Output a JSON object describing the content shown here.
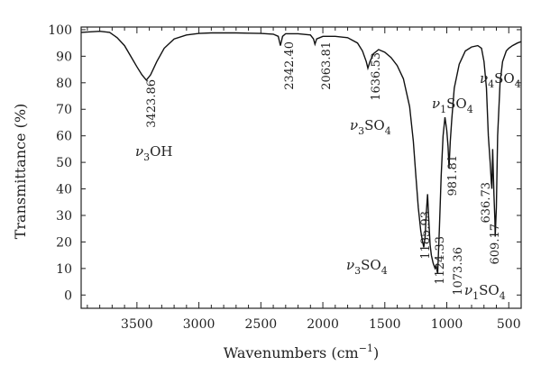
{
  "chart_data": {
    "type": "line",
    "xlabel": "Wavenumbers (cm",
    "xlabel_sup": "−1",
    "xlabel_close": ")",
    "ylabel": "Transmittance (%)",
    "xlim": [
      3950,
      400
    ],
    "ylim": [
      -5,
      101
    ],
    "x_reversed": true,
    "x_ticks": [
      3500,
      3000,
      2500,
      2000,
      1500,
      1000,
      500
    ],
    "x_tick_labels": [
      "3500",
      "3000",
      "2500",
      "2000",
      "1500",
      "1000",
      "500"
    ],
    "y_ticks": [
      100,
      90,
      80,
      70,
      60,
      50,
      40,
      30,
      20,
      10,
      0
    ],
    "y_tick_labels": [
      "100",
      "90",
      "80",
      "70",
      "60",
      "50",
      "40",
      "30",
      "20",
      "10",
      "0"
    ],
    "grid": false,
    "legend": "none",
    "line_color": "#111111",
    "series": [
      {
        "x": [
          3950,
          3800,
          3720,
          3660,
          3600,
          3550,
          3500,
          3460,
          3423.86,
          3390,
          3340,
          3280,
          3200,
          3100,
          3000,
          2900,
          2800,
          2700,
          2600,
          2500,
          2400,
          2360,
          2342.4,
          2325,
          2300,
          2200,
          2100,
          2075,
          2063.81,
          2050,
          2000,
          1900,
          1800,
          1720,
          1680,
          1650,
          1636.53,
          1620,
          1590,
          1550,
          1500,
          1450,
          1400,
          1350,
          1300,
          1270,
          1250,
          1230,
          1210,
          1195,
          1185.93,
          1175,
          1165,
          1155,
          1145,
          1135,
          1124.33,
          1110,
          1095,
          1085,
          1073.36,
          1060,
          1045,
          1030,
          1015,
          1000,
          990,
          981.81,
          972,
          960,
          940,
          900,
          850,
          800,
          750,
          720,
          700,
          680,
          665,
          650,
          640,
          636.73,
          630,
          620,
          612,
          609.17,
          600,
          590,
          570,
          550,
          520,
          500,
          470,
          430,
          400
        ],
        "y": [
          99,
          99.4,
          99,
          97,
          94,
          90,
          86,
          83,
          81,
          83,
          88,
          93,
          96.5,
          98,
          98.6,
          98.8,
          98.8,
          98.8,
          98.7,
          98.6,
          98.3,
          97.5,
          94,
          97.5,
          98.5,
          98.5,
          98,
          96.5,
          94.5,
          96.5,
          97.5,
          97.5,
          97,
          95,
          92,
          88,
          85.5,
          88,
          91,
          92.5,
          91.5,
          89.5,
          86.5,
          81.5,
          71,
          58,
          45,
          33,
          24,
          20,
          18,
          22,
          31,
          38,
          28,
          19,
          15,
          12,
          10,
          11,
          8,
          25,
          45,
          60,
          67,
          62,
          56,
          48,
          58,
          66,
          78,
          87,
          92,
          93.5,
          94,
          93,
          88,
          78,
          60,
          50,
          42,
          40,
          55,
          38,
          28,
          22,
          33,
          60,
          80,
          88,
          92,
          93,
          94,
          95,
          95.5
        ]
      }
    ],
    "peak_labels": [
      {
        "x": 3423.86,
        "y": 81,
        "text": "3423.86"
      },
      {
        "x": 2342.4,
        "y": 94,
        "text": "2342.40"
      },
      {
        "x": 2063.81,
        "y": 94.5,
        "text": "2063.81"
      },
      {
        "x": 1636.53,
        "y": 85.5,
        "text": "1636.53"
      },
      {
        "x": 1185.93,
        "y": 18,
        "text": "1185.93"
      },
      {
        "x": 1124.33,
        "y": 12,
        "text": "1124.33"
      },
      {
        "x": 1073.36,
        "y": 8,
        "text": "1073.36"
      },
      {
        "x": 981.81,
        "y": 48,
        "text": "981.81"
      },
      {
        "x": 636.73,
        "y": 38,
        "text": "636.73"
      },
      {
        "x": 609.17,
        "y": 22,
        "text": "609.17"
      }
    ],
    "band_labels": [
      {
        "nu": "ν",
        "sub": "3",
        "species": "OH",
        "species_sub": ""
      },
      {
        "nu": "ν",
        "sub": "3",
        "species": "SO",
        "species_sub": "4"
      },
      {
        "nu": "ν",
        "sub": "3",
        "species": "SO",
        "species_sub": "4"
      },
      {
        "nu": "ν",
        "sub": "1",
        "species": "SO",
        "species_sub": "4"
      },
      {
        "nu": "ν",
        "sub": "4",
        "species": "SO",
        "species_sub": "4"
      },
      {
        "nu": "ν",
        "sub": "1",
        "species": "SO",
        "species_sub": "4"
      }
    ]
  }
}
